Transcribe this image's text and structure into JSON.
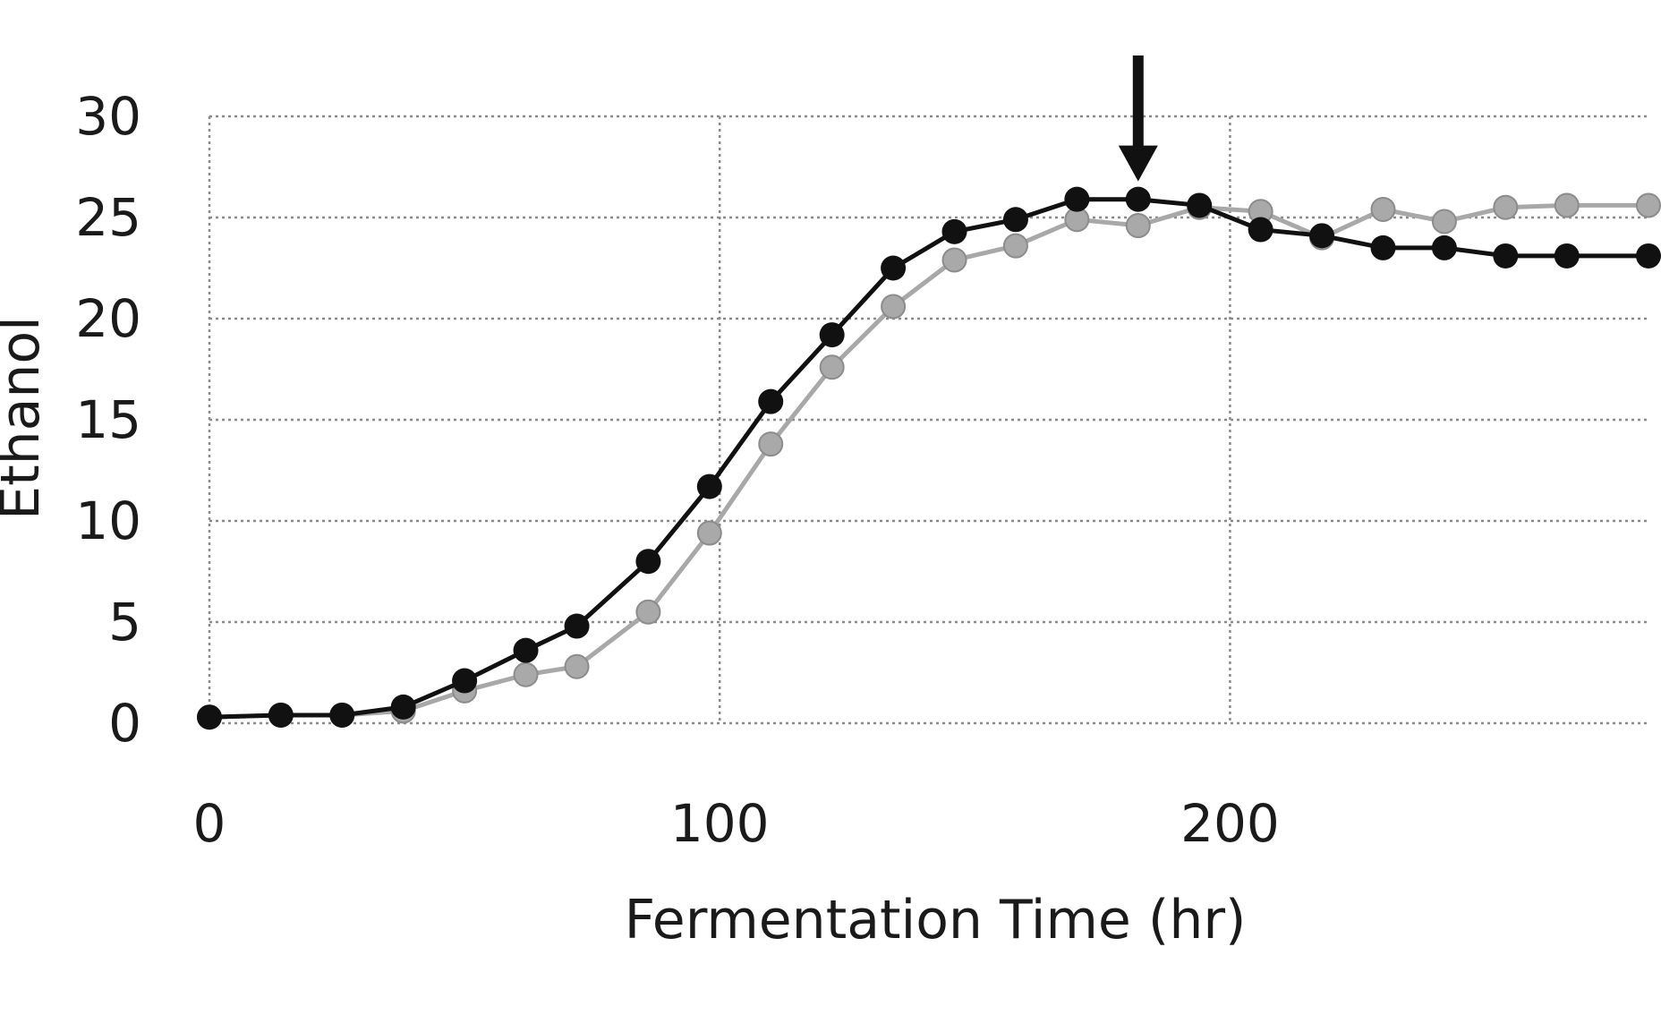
{
  "chart_data": {
    "type": "line",
    "title": "",
    "xlabel": "Fermentation Time (hr)",
    "ylabel": "Ethanol",
    "xlim": [
      0,
      282
    ],
    "ylim": [
      0,
      30
    ],
    "xticks": [
      0,
      100,
      200
    ],
    "yticks": [
      0,
      5,
      10,
      15,
      20,
      25,
      30
    ],
    "grid": true,
    "legend": "none",
    "series": [
      {
        "color": "#111111",
        "marker": "filled-circle",
        "x": [
          0,
          14,
          26,
          38,
          50,
          62,
          72,
          86,
          98,
          110,
          122,
          134,
          146,
          158,
          170,
          182,
          194,
          206,
          218,
          230,
          242,
          254,
          266,
          282
        ],
        "y": [
          0.3,
          0.4,
          0.4,
          0.8,
          2.1,
          3.6,
          4.8,
          8.0,
          11.7,
          15.9,
          19.2,
          22.5,
          24.3,
          24.9,
          25.9,
          25.9,
          25.6,
          24.4,
          24.1,
          23.5,
          23.5,
          23.1,
          23.1,
          23.1
        ]
      },
      {
        "color": "#a8a8a8",
        "marker": "filled-circle",
        "x": [
          0,
          14,
          26,
          38,
          50,
          62,
          72,
          86,
          98,
          110,
          122,
          134,
          146,
          158,
          170,
          182,
          194,
          206,
          218,
          230,
          242,
          254,
          266,
          282
        ],
        "y": [
          0.3,
          0.4,
          0.4,
          0.6,
          1.6,
          2.4,
          2.8,
          5.5,
          9.4,
          13.8,
          17.6,
          20.6,
          22.9,
          23.6,
          24.9,
          24.6,
          25.5,
          25.3,
          24.0,
          25.4,
          24.8,
          25.5,
          25.6,
          25.6
        ]
      }
    ],
    "annotations": [
      {
        "type": "arrow-down",
        "x": 182,
        "y": 25.9
      }
    ]
  }
}
